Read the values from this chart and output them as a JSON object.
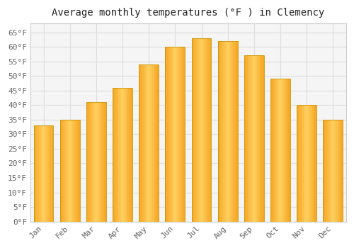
{
  "title": "Average monthly temperatures (°F ) in Clemency",
  "months": [
    "Jan",
    "Feb",
    "Mar",
    "Apr",
    "May",
    "Jun",
    "Jul",
    "Aug",
    "Sep",
    "Oct",
    "Nov",
    "Dec"
  ],
  "values": [
    33,
    35,
    41,
    46,
    54,
    60,
    63,
    62,
    57,
    49,
    40,
    35
  ],
  "bar_color_left": "#F5A623",
  "bar_color_center": "#FFD060",
  "bar_color_right": "#F5A623",
  "bar_edge_color": "#B8860B",
  "ylim": [
    0,
    68
  ],
  "yticks": [
    0,
    5,
    10,
    15,
    20,
    25,
    30,
    35,
    40,
    45,
    50,
    55,
    60,
    65
  ],
  "background_color": "#ffffff",
  "plot_bg_color": "#f5f5f5",
  "grid_color": "#dddddd",
  "title_fontsize": 10,
  "tick_fontsize": 8,
  "font_family": "monospace"
}
